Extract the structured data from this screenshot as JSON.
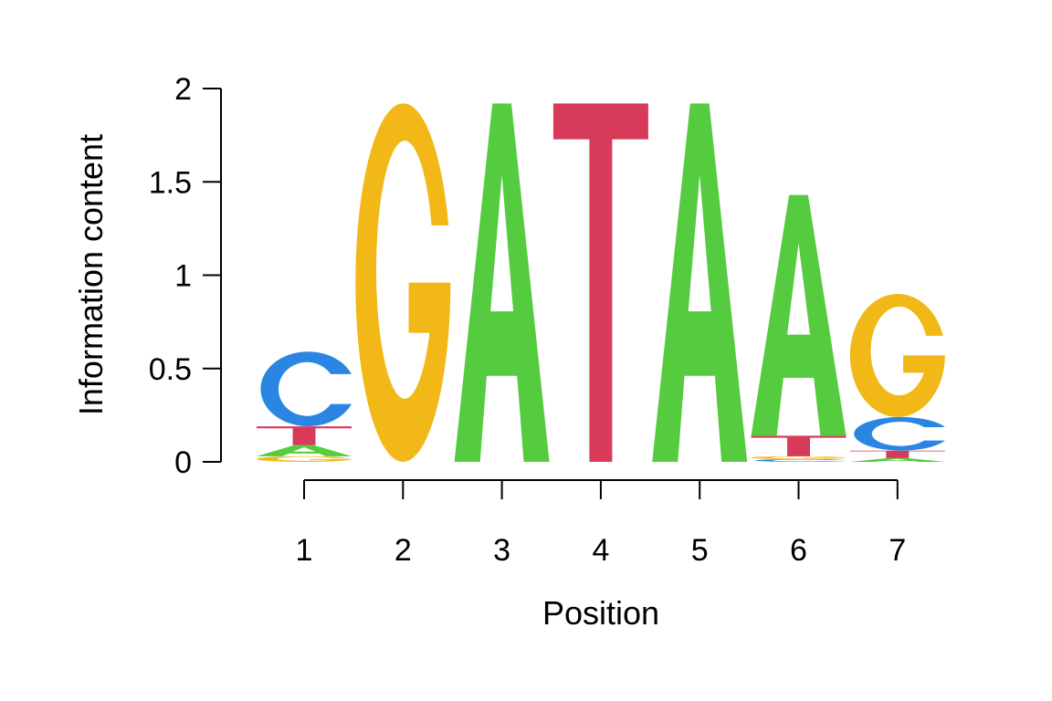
{
  "chart_data": {
    "type": "sequence-logo",
    "xlabel": "Position",
    "ylabel": "Information content",
    "ylim": [
      0,
      2
    ],
    "y_ticks": [
      {
        "value": 0,
        "label": "0"
      },
      {
        "value": 0.5,
        "label": "0.5"
      },
      {
        "value": 1,
        "label": "1"
      },
      {
        "value": 1.5,
        "label": "1.5"
      },
      {
        "value": 2,
        "label": "2"
      }
    ],
    "positions": [
      "1",
      "2",
      "3",
      "4",
      "5",
      "6",
      "7"
    ],
    "colors": {
      "A": "#55cc3f",
      "C": "#2a86e2",
      "G": "#f2b817",
      "T": "#d83b5a"
    },
    "stacks": [
      [
        {
          "letter": "G",
          "value": 0.03
        },
        {
          "letter": "A",
          "value": 0.06
        },
        {
          "letter": "T",
          "value": 0.1
        },
        {
          "letter": "C",
          "value": 0.4
        }
      ],
      [
        {
          "letter": "G",
          "value": 1.92
        }
      ],
      [
        {
          "letter": "A",
          "value": 1.92
        }
      ],
      [
        {
          "letter": "T",
          "value": 1.92
        }
      ],
      [
        {
          "letter": "A",
          "value": 1.92
        }
      ],
      [
        {
          "letter": "C",
          "value": 0.015
        },
        {
          "letter": "G",
          "value": 0.015
        },
        {
          "letter": "T",
          "value": 0.11
        },
        {
          "letter": "A",
          "value": 1.29
        }
      ],
      [
        {
          "letter": "A",
          "value": 0.02
        },
        {
          "letter": "T",
          "value": 0.04
        },
        {
          "letter": "C",
          "value": 0.18
        },
        {
          "letter": "G",
          "value": 0.66
        }
      ]
    ]
  }
}
